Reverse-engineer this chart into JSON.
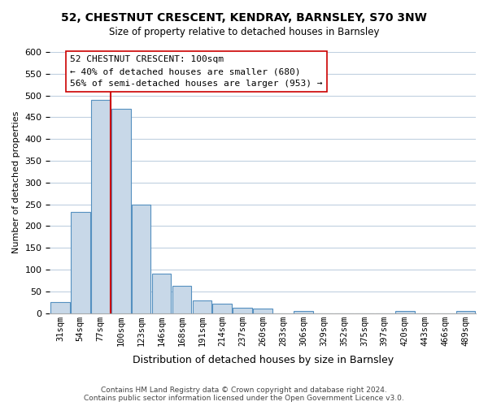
{
  "title": "52, CHESTNUT CRESCENT, KENDRAY, BARNSLEY, S70 3NW",
  "subtitle": "Size of property relative to detached houses in Barnsley",
  "xlabel": "Distribution of detached houses by size in Barnsley",
  "ylabel": "Number of detached properties",
  "bar_labels": [
    "31sqm",
    "54sqm",
    "77sqm",
    "100sqm",
    "123sqm",
    "146sqm",
    "168sqm",
    "191sqm",
    "214sqm",
    "237sqm",
    "260sqm",
    "283sqm",
    "306sqm",
    "329sqm",
    "352sqm",
    "375sqm",
    "397sqm",
    "420sqm",
    "443sqm",
    "466sqm",
    "489sqm"
  ],
  "bar_values": [
    25,
    233,
    490,
    470,
    250,
    90,
    63,
    30,
    22,
    13,
    10,
    0,
    4,
    0,
    0,
    0,
    0,
    5,
    0,
    0,
    5
  ],
  "bar_color": "#c8d8e8",
  "bar_edge_color": "#5590c0",
  "vline_x": 3,
  "vline_color": "#cc0000",
  "annotation_text": "52 CHESTNUT CRESCENT: 100sqm\n← 40% of detached houses are smaller (680)\n56% of semi-detached houses are larger (953) →",
  "annotation_box_color": "#ffffff",
  "annotation_box_edge_color": "#cc0000",
  "ylim": [
    0,
    600
  ],
  "yticks": [
    0,
    50,
    100,
    150,
    200,
    250,
    300,
    350,
    400,
    450,
    500,
    550,
    600
  ],
  "footer_text": "Contains HM Land Registry data © Crown copyright and database right 2024.\nContains public sector information licensed under the Open Government Licence v3.0.",
  "bg_color": "#ffffff",
  "grid_color": "#c0d0e0"
}
